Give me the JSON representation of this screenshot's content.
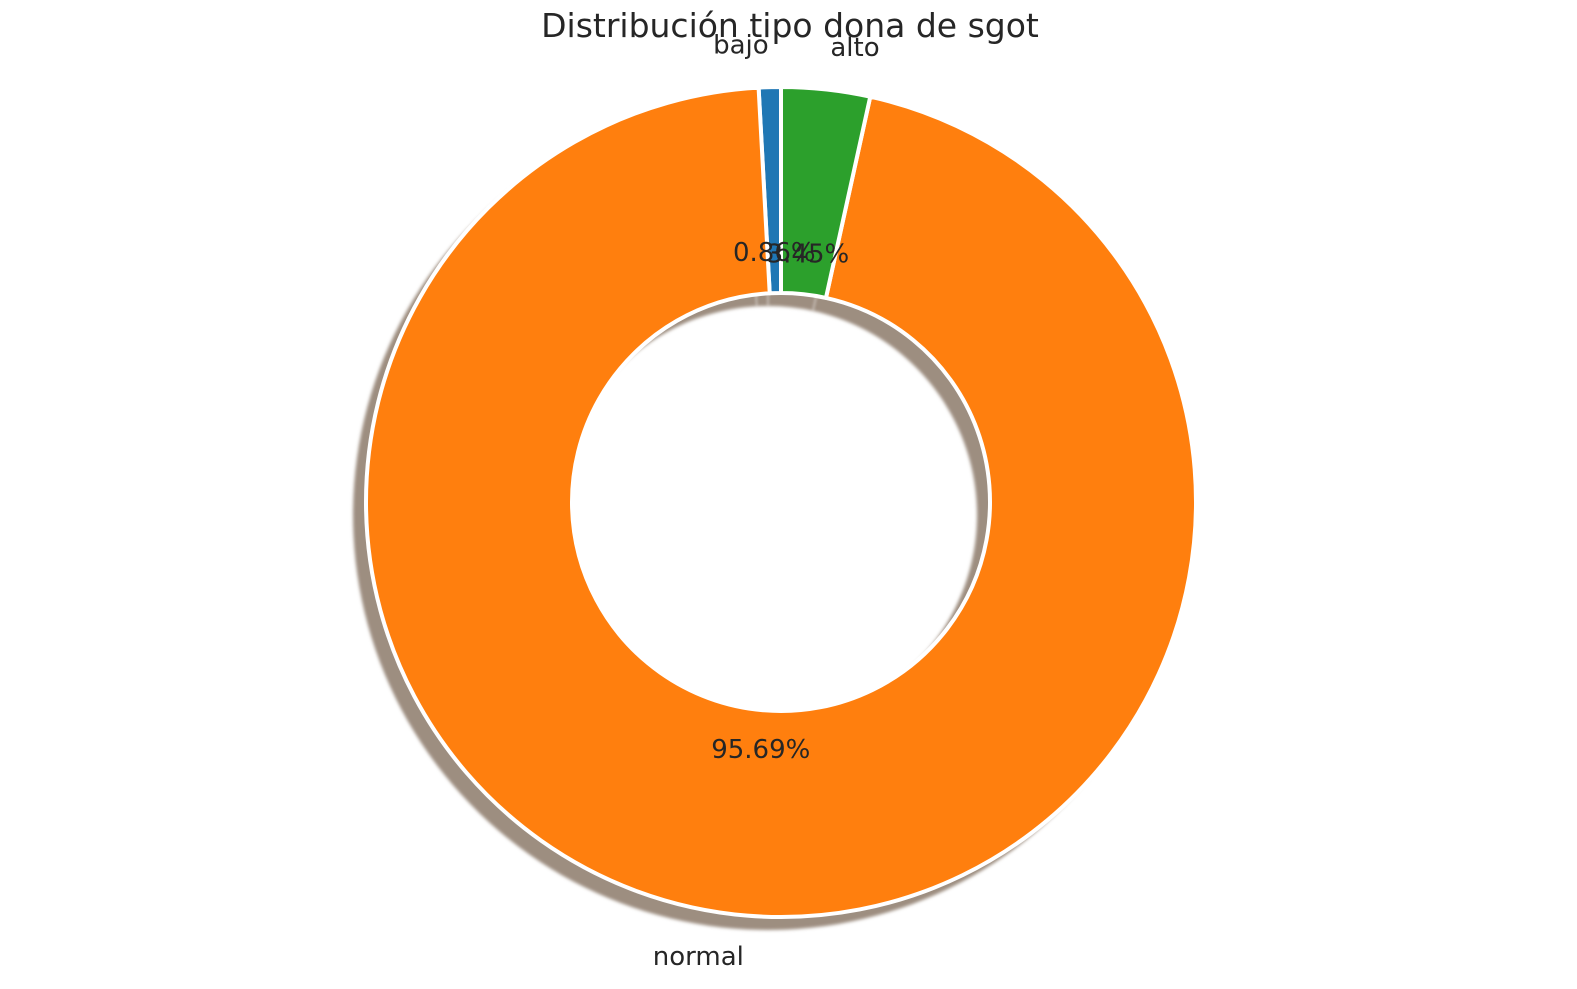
{
  "chart_data": {
    "type": "pie",
    "variant": "donut",
    "title": "Distribución tipo dona de sgot",
    "categories": [
      "bajo",
      "normal",
      "alto"
    ],
    "values": [
      0.86,
      95.69,
      3.45
    ],
    "value_labels": [
      "0.86%",
      "95.69%",
      "3.45%"
    ],
    "colors": [
      "#1f77b4",
      "#ff7f0e",
      "#2ca02c"
    ],
    "start_angle_deg": 90,
    "direction": "counterclockwise",
    "shadow": true,
    "legend": "none"
  }
}
